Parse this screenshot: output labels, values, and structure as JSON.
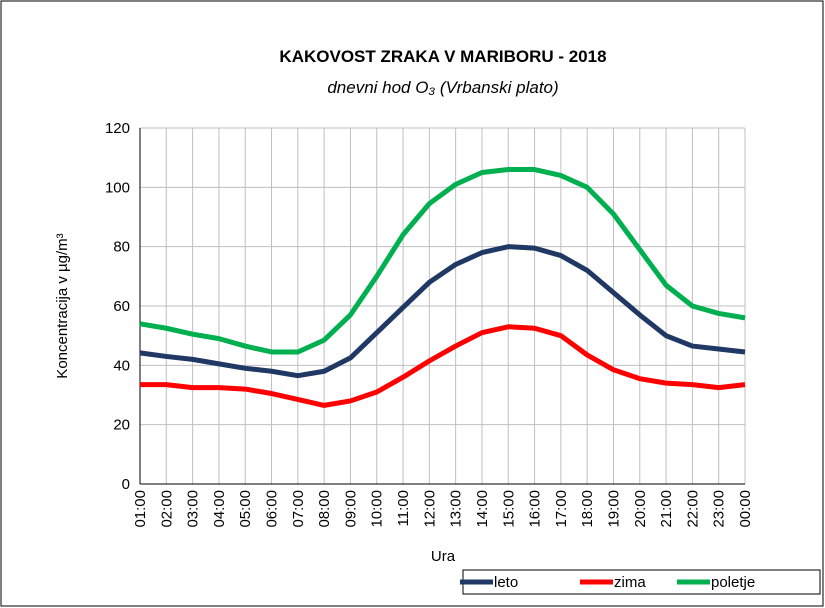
{
  "chart_data": {
    "type": "line",
    "title": "KAKOVOST ZRAKA V MARIBORU - 2018",
    "subtitle": "dnevni hod O₃ (Vrbanski plato)",
    "x_label": "Ura",
    "y_label": "Koncentracija v µg/m³",
    "categories": [
      "01:00",
      "02:00",
      "03:00",
      "04:00",
      "05:00",
      "06:00",
      "07:00",
      "08:00",
      "09:00",
      "10:00",
      "11:00",
      "12:00",
      "13:00",
      "14:00",
      "15:00",
      "16:00",
      "17:00",
      "18:00",
      "19:00",
      "20:00",
      "21:00",
      "22:00",
      "23:00",
      "00:00"
    ],
    "series": [
      {
        "name": "leto",
        "color": "#203864",
        "values": [
          44.2,
          43,
          42,
          40.5,
          39,
          38,
          36.5,
          38,
          42.5,
          51,
          59.5,
          68,
          74,
          78,
          80,
          79.5,
          77,
          72,
          64.5,
          57,
          50,
          46.5,
          45.5,
          44.5
        ]
      },
      {
        "name": "zima",
        "color": "#ff0000",
        "values": [
          33.5,
          33.5,
          32.5,
          32.5,
          32,
          30.5,
          28.5,
          26.5,
          28,
          31,
          36,
          41.5,
          46.5,
          51,
          53,
          52.5,
          50,
          43.5,
          38.5,
          35.5,
          34,
          33.5,
          32.5,
          33.5
        ]
      },
      {
        "name": "poletje",
        "color": "#00b050",
        "values": [
          54,
          52.5,
          50.5,
          49,
          46.5,
          44.5,
          44.5,
          48.5,
          57,
          70,
          84,
          94.5,
          101,
          105,
          106,
          106,
          104,
          100,
          91,
          79,
          67,
          60,
          57.5,
          56
        ]
      }
    ],
    "ylim": [
      0,
      120
    ],
    "yticks": [
      0,
      20,
      40,
      60,
      80,
      100,
      120
    ],
    "grid": true,
    "legend": "bottom-right"
  }
}
